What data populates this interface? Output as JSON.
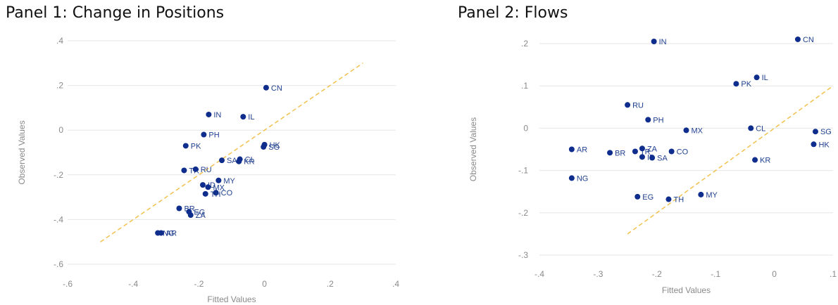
{
  "colors": {
    "point": "#0e2d8c",
    "label": "#1f3f8f",
    "fit_line": "#f2c14e",
    "grid": "#e6e6e6",
    "tick": "#8a8a8a"
  },
  "chart_data": [
    {
      "type": "scatter",
      "title": "Panel 1: Change in Positions",
      "xlabel": "Fitted Values",
      "ylabel": "Observed Values",
      "xlim": [
        -0.6,
        0.4
      ],
      "ylim": [
        -0.6,
        0.4
      ],
      "xticks": [
        -0.6,
        -0.4,
        -0.2,
        0,
        0.2,
        0.4
      ],
      "xtick_labels": [
        "-.6",
        "-.4",
        "-.2",
        "0",
        ".2",
        ".4"
      ],
      "yticks": [
        0.4,
        0.2,
        0,
        -0.2,
        -0.4,
        -0.6
      ],
      "ytick_labels": [
        ".4",
        ".2",
        "0",
        "-.2",
        "-.4",
        "-.6"
      ],
      "grid": "horizontal",
      "reference_line": {
        "style": "dashed",
        "from": [
          -0.5,
          -0.5
        ],
        "to": [
          0.3,
          0.3
        ]
      },
      "points": [
        {
          "label": "CN",
          "x": 0.005,
          "y": 0.19
        },
        {
          "label": "IN",
          "x": -0.17,
          "y": 0.07
        },
        {
          "label": "IL",
          "x": -0.065,
          "y": 0.06
        },
        {
          "label": "PH",
          "x": -0.185,
          "y": -0.02
        },
        {
          "label": "PK",
          "x": -0.24,
          "y": -0.07
        },
        {
          "label": "HK",
          "x": 0.0,
          "y": -0.065
        },
        {
          "label": "SG",
          "x": -0.003,
          "y": -0.075
        },
        {
          "label": "CL",
          "x": -0.075,
          "y": -0.13
        },
        {
          "label": "KR",
          "x": -0.078,
          "y": -0.14
        },
        {
          "label": "SA",
          "x": -0.13,
          "y": -0.135
        },
        {
          "label": "TR",
          "x": -0.245,
          "y": -0.18
        },
        {
          "label": "RU",
          "x": -0.21,
          "y": -0.175
        },
        {
          "label": "MY",
          "x": -0.14,
          "y": -0.225
        },
        {
          "label": "ID",
          "x": -0.188,
          "y": -0.245
        },
        {
          "label": "MX",
          "x": -0.172,
          "y": -0.255
        },
        {
          "label": "CO",
          "x": -0.148,
          "y": -0.28
        },
        {
          "label": "TH",
          "x": -0.18,
          "y": -0.285
        },
        {
          "label": "BR",
          "x": -0.26,
          "y": -0.35
        },
        {
          "label": "EG",
          "x": -0.23,
          "y": -0.365
        },
        {
          "label": "ZA",
          "x": -0.225,
          "y": -0.38
        },
        {
          "label": "NG",
          "x": -0.325,
          "y": -0.46
        },
        {
          "label": "AR",
          "x": -0.315,
          "y": -0.46
        }
      ]
    },
    {
      "type": "scatter",
      "title": "Panel 2: Flows",
      "xlabel": "Fitted Values",
      "ylabel": "Observed Values",
      "xlim": [
        -0.4,
        0.1
      ],
      "ylim": [
        -0.3,
        0.2
      ],
      "xticks": [
        -0.4,
        -0.3,
        -0.2,
        -0.1,
        0,
        0.1
      ],
      "xtick_labels": [
        "-.4",
        "-.3",
        "-.2",
        "-.1",
        "0",
        ".1"
      ],
      "yticks": [
        0.2,
        0.1,
        0,
        -0.1,
        -0.2,
        -0.3
      ],
      "ytick_labels": [
        ".2",
        ".1",
        "0",
        "-.1",
        "-.2",
        "-.3"
      ],
      "grid": "horizontal",
      "reference_line": {
        "style": "dashed",
        "from": [
          -0.25,
          -0.25
        ],
        "to": [
          0.1,
          0.1
        ]
      },
      "points": [
        {
          "label": "CN",
          "x": 0.04,
          "y": 0.21
        },
        {
          "label": "IN",
          "x": -0.205,
          "y": 0.205
        },
        {
          "label": "IL",
          "x": -0.03,
          "y": 0.12
        },
        {
          "label": "PK",
          "x": -0.065,
          "y": 0.105
        },
        {
          "label": "RU",
          "x": -0.25,
          "y": 0.055
        },
        {
          "label": "PH",
          "x": -0.215,
          "y": 0.02
        },
        {
          "label": "CL",
          "x": -0.04,
          "y": 0.0
        },
        {
          "label": "MX",
          "x": -0.15,
          "y": -0.005
        },
        {
          "label": "SG",
          "x": 0.07,
          "y": -0.008
        },
        {
          "label": "HK",
          "x": 0.067,
          "y": -0.038
        },
        {
          "label": "AR",
          "x": -0.345,
          "y": -0.05
        },
        {
          "label": "BR",
          "x": -0.28,
          "y": -0.058
        },
        {
          "label": "TR",
          "x": -0.237,
          "y": -0.055
        },
        {
          "label": "ZA",
          "x": -0.225,
          "y": -0.048
        },
        {
          "label": "CO",
          "x": -0.175,
          "y": -0.055
        },
        {
          "label": "ID",
          "x": -0.225,
          "y": -0.068
        },
        {
          "label": "SA",
          "x": -0.208,
          "y": -0.07
        },
        {
          "label": "KR",
          "x": -0.033,
          "y": -0.075
        },
        {
          "label": "NG",
          "x": -0.345,
          "y": -0.118
        },
        {
          "label": "EG",
          "x": -0.233,
          "y": -0.162
        },
        {
          "label": "TH",
          "x": -0.18,
          "y": -0.168
        },
        {
          "label": "MY",
          "x": -0.125,
          "y": -0.157
        }
      ]
    }
  ]
}
